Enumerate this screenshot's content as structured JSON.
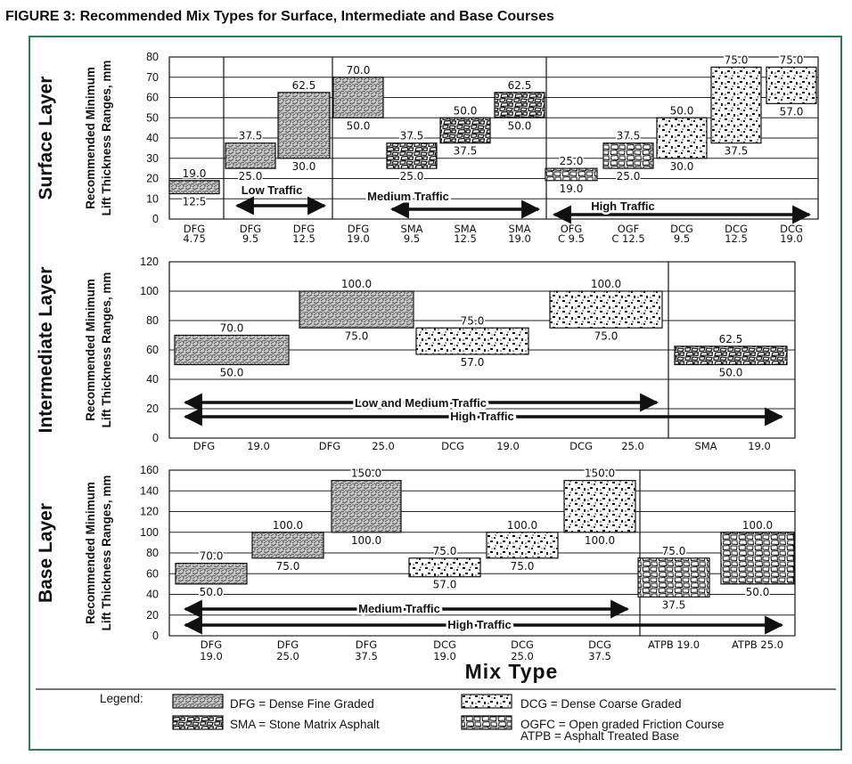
{
  "figure_title": "FIGURE 3:  Recommended Mix Types for Surface, Intermediate and Base Courses",
  "x_axis_title": "Mix Type",
  "colors": {
    "frame": "#2f7d4f",
    "ink": "#111111",
    "box_bg": "#ffffff"
  },
  "chart_data": [
    {
      "type": "range-bar",
      "panel": "Surface Layer",
      "ylabel": [
        "Recommended Minimum",
        "Lift Thickness Ranges, mm"
      ],
      "ylim": [
        0,
        80
      ],
      "yticks": [
        "0",
        "10",
        "20",
        "30",
        "40",
        "50",
        "60",
        "70",
        "80"
      ],
      "categories": [
        [
          "DFG",
          "4.75"
        ],
        [
          "DFG",
          "9.5"
        ],
        [
          "DFG",
          "12.5"
        ],
        [
          "DFG",
          "19.0"
        ],
        [
          "SMA",
          "9.5"
        ],
        [
          "SMA",
          "12.5"
        ],
        [
          "SMA",
          "19.0"
        ],
        [
          "OFG",
          "C  9.5"
        ],
        [
          "OGF",
          "C  12.5"
        ],
        [
          "DCG",
          "9.5"
        ],
        [
          "DCG",
          "12.5"
        ],
        [
          "DCG",
          "19.0"
        ]
      ],
      "ranges": [
        {
          "category": "DFG 4.75",
          "min": 12.5,
          "max": 19.0,
          "min_label": "12.5",
          "max_label": "19.0",
          "pattern": "dfg"
        },
        {
          "category": "DFG 9.5",
          "min": 25.0,
          "max": 37.5,
          "min_label": "25.0",
          "max_label": "37.5",
          "pattern": "dfg"
        },
        {
          "category": "DFG 12.5",
          "min": 30.0,
          "max": 62.5,
          "min_label": "30.0",
          "max_label": "62.5",
          "pattern": "dfg"
        },
        {
          "category": "DFG 19.0",
          "min": 50.0,
          "max": 70.0,
          "min_label": "50.0",
          "max_label": "70.0",
          "pattern": "dfg"
        },
        {
          "category": "SMA 9.5",
          "min": 25.0,
          "max": 37.5,
          "min_label": "25.0",
          "max_label": "37.5",
          "pattern": "sma"
        },
        {
          "category": "SMA 12.5",
          "min": 37.5,
          "max": 50.0,
          "min_label": "37.5",
          "max_label": "50.0",
          "pattern": "sma"
        },
        {
          "category": "SMA 19.0",
          "min": 50.0,
          "max": 62.5,
          "min_label": "50.0",
          "max_label": "62.5",
          "pattern": "sma"
        },
        {
          "category": "OFGC 9.5",
          "min": 19.0,
          "max": 25.0,
          "min_label": "19.0",
          "max_label": "25.0",
          "pattern": "ogfc"
        },
        {
          "category": "OGFC 12.5",
          "min": 25.0,
          "max": 37.5,
          "min_label": "25.0",
          "max_label": "37.5",
          "pattern": "ogfc"
        },
        {
          "category": "DCG 9.5",
          "min": 30.0,
          "max": 50.0,
          "min_label": "30.0",
          "max_label": "50.0",
          "pattern": "dcg"
        },
        {
          "category": "DCG 12.5",
          "min": 37.5,
          "max": 75.0,
          "min_label": "37.5",
          "max_label": "75.0",
          "pattern": "dcg"
        },
        {
          "category": "DCG 19.0",
          "min": 57.0,
          "max": 75.0,
          "min_label": "57.0",
          "max_label": "75.0",
          "pattern": "dcg"
        }
      ],
      "traffic": [
        {
          "label": "Low Traffic",
          "from": "DFG 9.5",
          "to": "DFG 12.5"
        },
        {
          "label": "Medium Traffic",
          "from": "DFG 19.0",
          "to": "SMA 19.0"
        },
        {
          "label": "High Traffic",
          "from": "OFGC 9.5",
          "to": "DCG 19.0"
        }
      ],
      "grid": true
    },
    {
      "type": "range-bar",
      "panel": "Intermediate Layer",
      "ylabel": [
        "Recommended Minimum",
        "Lift Thickness Ranges, mm"
      ],
      "ylim": [
        0,
        120
      ],
      "yticks": [
        "0",
        "20",
        "40",
        "60",
        "80",
        "100",
        "120"
      ],
      "categories": [
        [
          "DFG",
          "19.0"
        ],
        [
          "DFG",
          "25.0"
        ],
        [
          "DCG",
          "19.0"
        ],
        [
          "DCG",
          "25.0"
        ],
        [
          "SMA",
          "19.0"
        ]
      ],
      "ranges": [
        {
          "category": "DFG 19.0",
          "min": 50.0,
          "max": 70.0,
          "min_label": "50.0",
          "max_label": "70.0",
          "pattern": "dfg"
        },
        {
          "category": "DFG 25.0",
          "min": 75.0,
          "max": 100.0,
          "min_label": "75.0",
          "max_label": "100.0",
          "pattern": "dfg"
        },
        {
          "category": "DCG 19.0",
          "min": 57.0,
          "max": 75.0,
          "min_label": "57.0",
          "max_label": "75.0",
          "pattern": "dcg"
        },
        {
          "category": "DCG 25.0",
          "min": 75.0,
          "max": 100.0,
          "min_label": "75.0",
          "max_label": "100.0",
          "pattern": "dcg"
        },
        {
          "category": "SMA 19.0",
          "min": 50.0,
          "max": 62.5,
          "min_label": "50.0",
          "max_label": "62.5",
          "pattern": "sma"
        }
      ],
      "traffic": [
        {
          "label": "Low and Medium Traffic",
          "from": "DFG 19.0",
          "to": "DCG 25.0"
        },
        {
          "label": "High Traffic",
          "from": "DFG 19.0",
          "to": "SMA 19.0"
        }
      ],
      "grid": true
    },
    {
      "type": "range-bar",
      "panel": "Base Layer",
      "ylabel": [
        "Recommended Minimum",
        "Lift Thickness Ranges, mm"
      ],
      "ylim": [
        0,
        160
      ],
      "yticks": [
        "0",
        "20",
        "40",
        "60",
        "80",
        "100",
        "120",
        "140",
        "160"
      ],
      "categories": [
        [
          "DFG",
          "19.0"
        ],
        [
          "DFG",
          "25.0"
        ],
        [
          "DFG",
          "37.5"
        ],
        [
          "DCG",
          "19.0"
        ],
        [
          "DCG",
          "25.0"
        ],
        [
          "DCG",
          "37.5"
        ],
        [
          "ATPB 19.0",
          ""
        ],
        [
          "ATPB 25.0",
          ""
        ]
      ],
      "ranges": [
        {
          "category": "DFG 19.0",
          "min": 50.0,
          "max": 70.0,
          "min_label": "50.0",
          "max_label": "70.0",
          "pattern": "dfg"
        },
        {
          "category": "DFG 25.0",
          "min": 75.0,
          "max": 100.0,
          "min_label": "75.0",
          "max_label": "100.0",
          "pattern": "dfg"
        },
        {
          "category": "DFG 37.5",
          "min": 100.0,
          "max": 150.0,
          "min_label": "100.0",
          "max_label": "150.0",
          "pattern": "dfg"
        },
        {
          "category": "DCG 19.0",
          "min": 57.0,
          "max": 75.0,
          "min_label": "57.0",
          "max_label": "75.0",
          "pattern": "dcg"
        },
        {
          "category": "DCG 25.0",
          "min": 75.0,
          "max": 100.0,
          "min_label": "75.0",
          "max_label": "100.0",
          "pattern": "dcg"
        },
        {
          "category": "DCG 37.5",
          "min": 100.0,
          "max": 150.0,
          "min_label": "100.0",
          "max_label": "150.0",
          "pattern": "dcg"
        },
        {
          "category": "ATPB 19.0",
          "min": 37.5,
          "max": 75.0,
          "min_label": "37.5",
          "max_label": "75.0",
          "pattern": "ogfc"
        },
        {
          "category": "ATPB 25.0",
          "min": 50.0,
          "max": 100.0,
          "min_label": "50.0",
          "max_label": "100.0",
          "pattern": "ogfc"
        }
      ],
      "traffic": [
        {
          "label": "Medium Traffic",
          "from": "DFG 19.0",
          "to": "DCG 37.5"
        },
        {
          "label": "High Traffic",
          "from": "DFG 19.0",
          "to": "ATPB 25.0"
        }
      ],
      "grid": true
    }
  ],
  "legend": {
    "title": "Legend:",
    "items": [
      {
        "pattern": "dfg",
        "text": "DFG = Dense Fine Graded"
      },
      {
        "pattern": "dcg",
        "text": "DCG = Dense Coarse Graded"
      },
      {
        "pattern": "sma",
        "text": "SMA = Stone Matrix Asphalt"
      },
      {
        "pattern": "ogfc",
        "text": "OGFC = Open graded Friction Course"
      },
      {
        "pattern": "",
        "text": "ATPB = Asphalt Treated Base"
      }
    ]
  }
}
